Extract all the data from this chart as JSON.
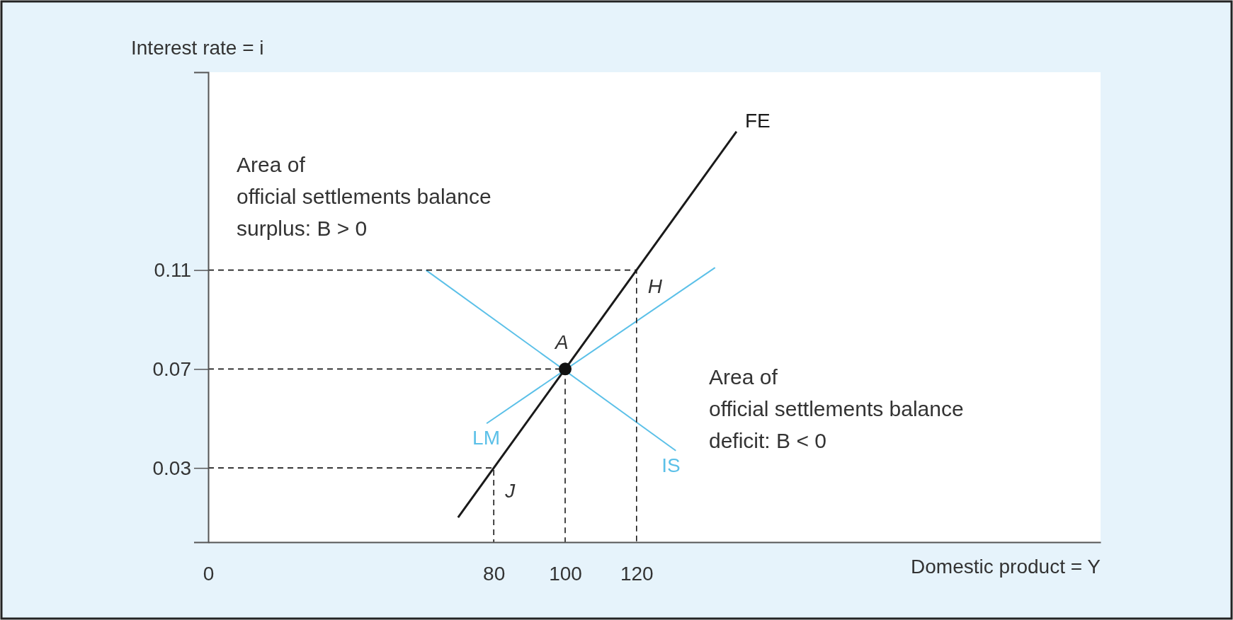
{
  "chart_data": {
    "type": "line",
    "xlabel": "Domestic product = Y",
    "ylabel": "Interest rate = i",
    "xlim": [
      0,
      250
    ],
    "ylim": [
      0,
      0.19
    ],
    "xticks": [
      {
        "value": 0,
        "label": "0"
      },
      80,
      100,
      120
    ],
    "yticks": [
      0.03,
      0.07,
      0.11
    ],
    "series": [
      {
        "name": "FE",
        "color": "#1a1a1a",
        "x": [
          70,
          80,
          100,
          120,
          148
        ],
        "values": [
          0.01,
          0.03,
          0.07,
          0.11,
          0.166
        ]
      },
      {
        "name": "LM",
        "color": "#5bc0e8",
        "x": [
          142,
          78
        ],
        "values": [
          0.111,
          0.048
        ]
      },
      {
        "name": "IS",
        "color": "#5bc0e8",
        "x": [
          61,
          131
        ],
        "values": [
          0.11,
          0.037
        ]
      },
      {
        "color": "#1a1a1a",
        "line_style": "dashed",
        "x": [
          0,
          80,
          80
        ],
        "values": [
          0.03,
          0.03,
          0
        ]
      },
      {
        "color": "#1a1a1a",
        "line_style": "dashed",
        "x": [
          0,
          100,
          100
        ],
        "values": [
          0.07,
          0.07,
          0
        ]
      },
      {
        "color": "#1a1a1a",
        "line_style": "dashed",
        "x": [
          0,
          120,
          120
        ],
        "values": [
          0.11,
          0.11,
          0
        ]
      },
      {
        "type": "scatter",
        "color": "#111111",
        "x": [
          100
        ],
        "values": [
          0.07
        ]
      }
    ],
    "annotations": [
      {
        "text": "A",
        "x": 100,
        "y": 0.07
      },
      {
        "text": "J",
        "x": 80,
        "y": 0.03
      },
      {
        "text": "H",
        "x": 120,
        "y": 0.11
      },
      "Area of\nofficial settlements balance\nsurplus: B > 0",
      "Area of\nofficial settlements balance\ndeficit: B < 0"
    ],
    "grid": false
  }
}
